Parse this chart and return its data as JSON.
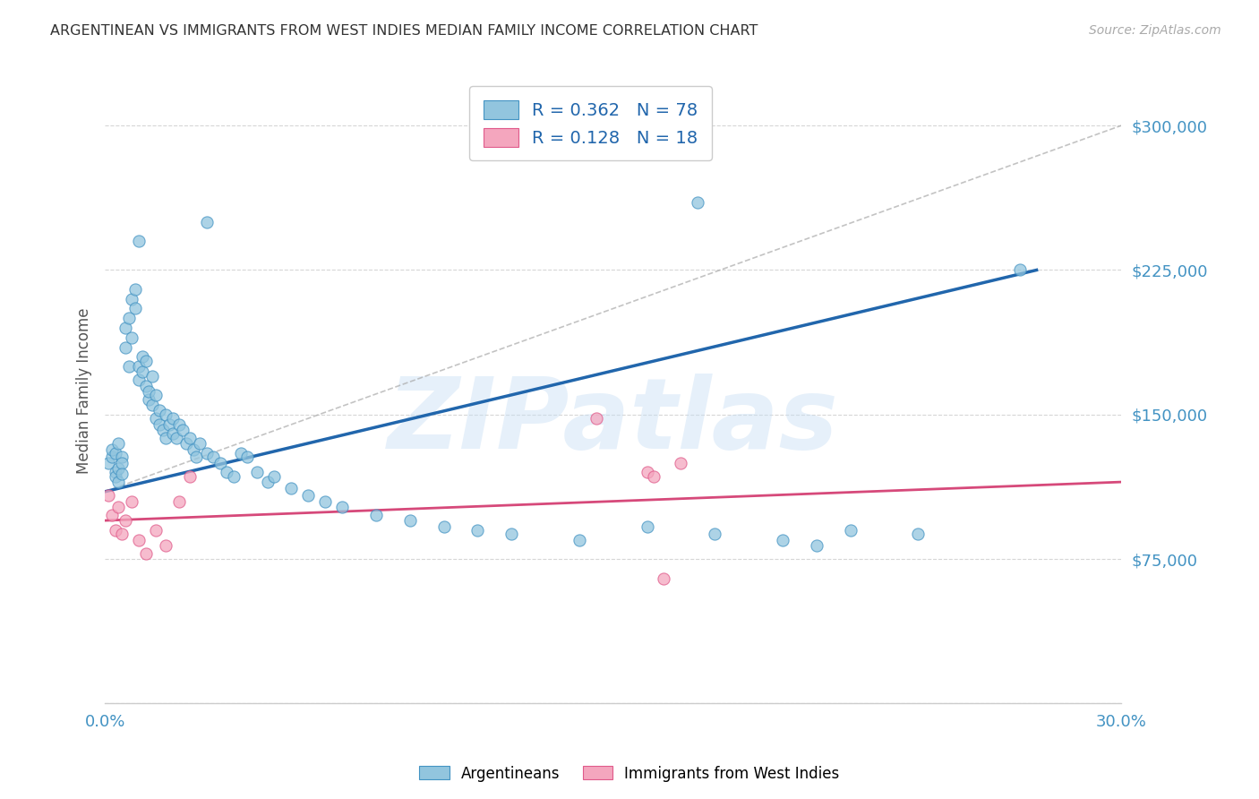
{
  "title": "ARGENTINEAN VS IMMIGRANTS FROM WEST INDIES MEDIAN FAMILY INCOME CORRELATION CHART",
  "source": "Source: ZipAtlas.com",
  "ylabel": "Median Family Income",
  "xlim": [
    0.0,
    0.3
  ],
  "ylim": [
    0,
    325000
  ],
  "yticks": [
    0,
    75000,
    150000,
    225000,
    300000
  ],
  "ytick_labels": [
    "",
    "$75,000",
    "$150,000",
    "$225,000",
    "$300,000"
  ],
  "blue_color": "#92c5de",
  "blue_edge_color": "#4393c3",
  "pink_color": "#f4a6be",
  "pink_edge_color": "#e05a8a",
  "blue_line_color": "#2166ac",
  "pink_line_color": "#d6497a",
  "dashed_line_color": "#9ecae1",
  "blue_scatter_x": [
    0.001,
    0.002,
    0.002,
    0.003,
    0.003,
    0.003,
    0.004,
    0.004,
    0.004,
    0.005,
    0.005,
    0.005,
    0.006,
    0.006,
    0.007,
    0.007,
    0.008,
    0.008,
    0.009,
    0.009,
    0.01,
    0.01,
    0.011,
    0.011,
    0.012,
    0.012,
    0.013,
    0.013,
    0.014,
    0.014,
    0.015,
    0.015,
    0.016,
    0.016,
    0.017,
    0.018,
    0.018,
    0.019,
    0.02,
    0.02,
    0.021,
    0.022,
    0.023,
    0.024,
    0.025,
    0.026,
    0.027,
    0.028,
    0.03,
    0.032,
    0.034,
    0.036,
    0.038,
    0.04,
    0.042,
    0.045,
    0.048,
    0.05,
    0.055,
    0.06,
    0.065,
    0.07,
    0.08,
    0.09,
    0.1,
    0.11,
    0.12,
    0.14,
    0.16,
    0.18,
    0.2,
    0.21,
    0.22,
    0.24,
    0.01,
    0.03,
    0.175,
    0.27
  ],
  "blue_scatter_y": [
    125000,
    128000,
    132000,
    120000,
    130000,
    118000,
    122000,
    135000,
    115000,
    128000,
    125000,
    119000,
    195000,
    185000,
    175000,
    200000,
    210000,
    190000,
    205000,
    215000,
    175000,
    168000,
    180000,
    172000,
    165000,
    178000,
    158000,
    162000,
    155000,
    170000,
    160000,
    148000,
    152000,
    145000,
    142000,
    150000,
    138000,
    145000,
    140000,
    148000,
    138000,
    145000,
    142000,
    135000,
    138000,
    132000,
    128000,
    135000,
    130000,
    128000,
    125000,
    120000,
    118000,
    130000,
    128000,
    120000,
    115000,
    118000,
    112000,
    108000,
    105000,
    102000,
    98000,
    95000,
    92000,
    90000,
    88000,
    85000,
    92000,
    88000,
    85000,
    82000,
    90000,
    88000,
    240000,
    250000,
    260000,
    225000
  ],
  "pink_scatter_x": [
    0.001,
    0.002,
    0.003,
    0.004,
    0.005,
    0.006,
    0.008,
    0.01,
    0.012,
    0.015,
    0.018,
    0.022,
    0.025,
    0.16,
    0.162,
    0.165,
    0.17,
    0.145
  ],
  "pink_scatter_y": [
    108000,
    98000,
    90000,
    102000,
    88000,
    95000,
    105000,
    85000,
    78000,
    90000,
    82000,
    105000,
    118000,
    120000,
    118000,
    65000,
    125000,
    148000
  ],
  "blue_line_x0": 0.0,
  "blue_line_y0": 110000,
  "blue_line_x1": 0.275,
  "blue_line_y1": 225000,
  "pink_line_x0": 0.0,
  "pink_line_y0": 95000,
  "pink_line_x1": 0.3,
  "pink_line_y1": 115000,
  "dashed_line_x0": 0.0,
  "dashed_line_y0": 110000,
  "dashed_line_x1": 0.3,
  "dashed_line_y1": 300000,
  "legend_blue_label_r": "R = 0.362",
  "legend_blue_label_n": "N = 78",
  "legend_pink_label_r": "R = 0.128",
  "legend_pink_label_n": "N = 18",
  "watermark": "ZIPatlas",
  "background_color": "#ffffff",
  "grid_color": "#cccccc",
  "title_color": "#333333",
  "axis_label_color": "#4393c3",
  "source_color": "#aaaaaa"
}
